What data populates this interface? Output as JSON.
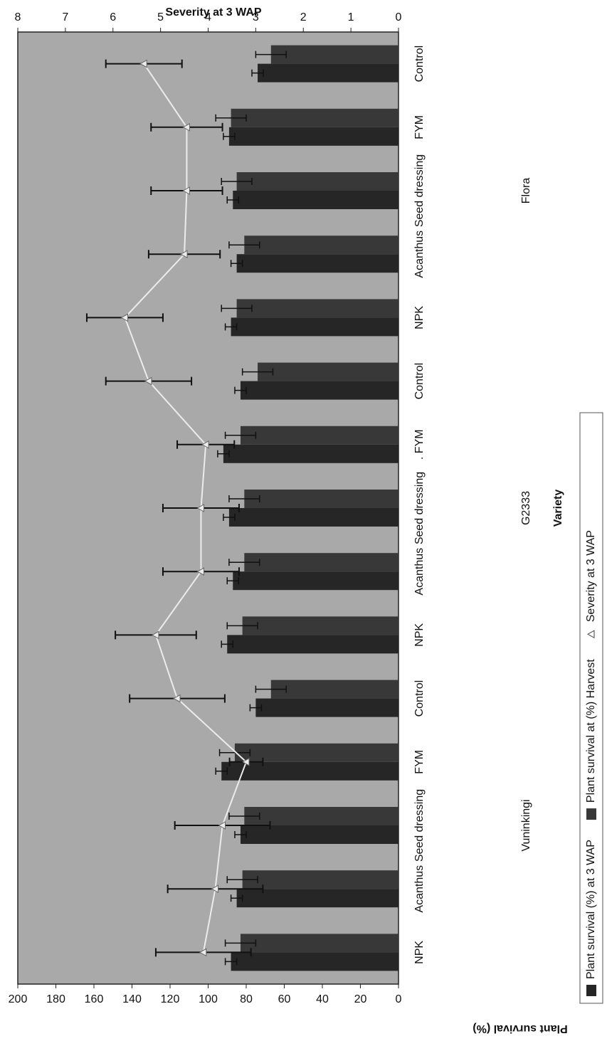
{
  "chart_data": {
    "type": "bar",
    "y_label": "Plant survival (%)",
    "y2_label": "Severity at 3 WAP",
    "x_label": "Variety",
    "groups": [
      "Vuninkingi",
      "G2333",
      "Flora"
    ],
    "categories": [
      "NPK",
      "Acanthus",
      "Seed dressing",
      "FYM",
      "Control",
      "NPK",
      "Acanthus",
      "Seed dressing",
      ". FYM",
      "Control",
      "NPK",
      "Acanthus",
      "Seed dressing",
      "FYM",
      "Control"
    ],
    "series": [
      {
        "name": "Plant survival (%) at 3 WAP",
        "color": "#262626",
        "values": [
          88,
          85,
          83,
          93,
          75,
          90,
          87,
          89,
          92,
          83,
          88,
          85,
          87,
          89,
          74
        ],
        "errors": [
          3,
          3,
          3,
          3,
          3,
          3,
          3,
          3,
          3,
          3,
          3,
          3,
          3,
          3,
          3
        ]
      },
      {
        "name": "Plant survival at (%) Harvest",
        "color": "#383838",
        "values": [
          83,
          82,
          81,
          86,
          67,
          82,
          81,
          81,
          83,
          74,
          85,
          81,
          85,
          88,
          67
        ],
        "errors": [
          8,
          8,
          8,
          8,
          8,
          8,
          8,
          8,
          8,
          8,
          8,
          8,
          8,
          8,
          8
        ]
      },
      {
        "name": "Severity at 3 WAP",
        "color": "#ececec",
        "axis": "y2",
        "marker": "triangle",
        "values": [
          4.1,
          3.85,
          3.7,
          3.2,
          4.65,
          5.1,
          4.15,
          4.15,
          4.05,
          5.25,
          5.75,
          4.5,
          4.45,
          4.45,
          5.35
        ],
        "errors": [
          1.0,
          1.0,
          1.0,
          0.35,
          1.0,
          0.85,
          0.8,
          0.8,
          0.6,
          0.9,
          0.8,
          0.75,
          0.75,
          0.75,
          0.8
        ]
      }
    ],
    "ylim": [
      0,
      200
    ],
    "yticks": [
      0,
      20,
      40,
      60,
      80,
      100,
      120,
      140,
      160,
      180,
      200
    ],
    "y2lim": [
      0,
      8
    ],
    "y2ticks": [
      0,
      1,
      2,
      3,
      4,
      5,
      6,
      7,
      8
    ],
    "plot_background": "#a9a9a9",
    "legend": "bottom"
  }
}
